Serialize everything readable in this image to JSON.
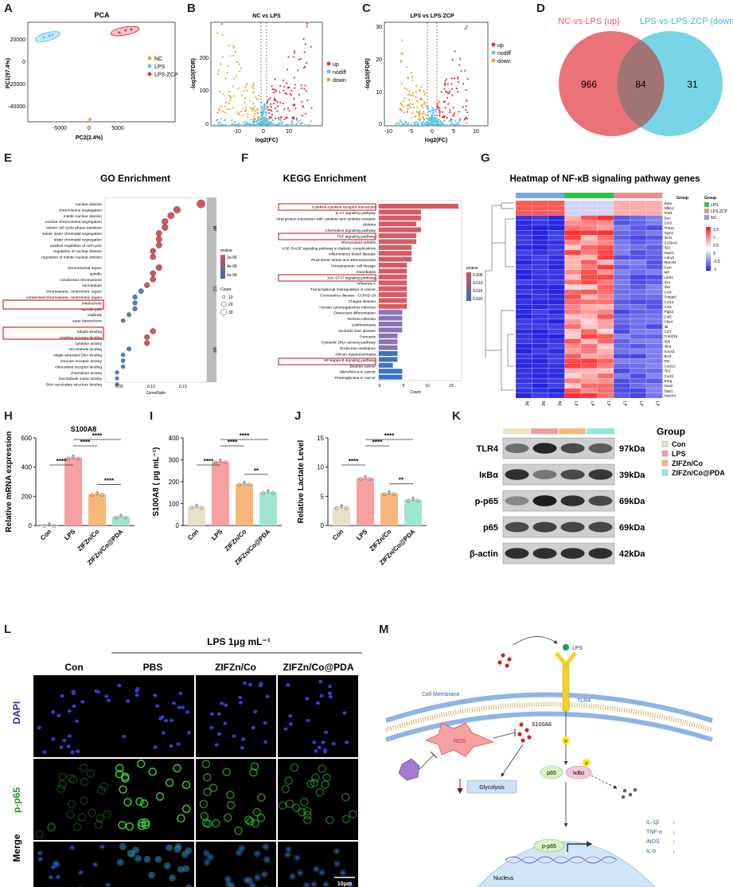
{
  "panels": {
    "A": {
      "label": "A",
      "title": "PCA",
      "xlabel": "PC2(2.4%)",
      "ylabel": "PC1(97.4%)",
      "yticks": [
        "20000",
        "0",
        "-20000",
        "-40000"
      ],
      "xticks": [
        "-5000",
        "0",
        "5000"
      ],
      "legend": [
        "NC",
        "LPS",
        "LPS-ZCP"
      ]
    },
    "B": {
      "label": "B",
      "title": "NC vs LPS",
      "xlabel": "log2(FC)",
      "ylabel": "-log10(FDR)",
      "yticks": [
        "200",
        "100",
        "0"
      ],
      "xticks": [
        "-10",
        "0",
        "10"
      ],
      "legend": [
        "up",
        "nodiff",
        "down"
      ]
    },
    "C": {
      "label": "C",
      "title": "LPS vs LPS-ZCP",
      "xlabel": "log2(FC)",
      "ylabel": "-log10(FDR)",
      "yticks": [
        "30",
        "20",
        "10",
        "0"
      ],
      "xticks": [
        "-10",
        "-5",
        "0",
        "5",
        "10"
      ],
      "legend": [
        "up",
        "nodiff",
        "down"
      ]
    },
    "D": {
      "label": "D",
      "left_label": "NC-vs-LPS (up)",
      "right_label": "LPS-vs-LPS-ZCP (down)",
      "left_only": "966",
      "overlap": "84",
      "right_only": "31"
    },
    "E": {
      "label": "E",
      "title": "GO Enrichment",
      "xlabel": "GeneRatio",
      "xticks": [
        "0.05",
        "0.10",
        "0.15"
      ],
      "groups": [
        "BP",
        "CC",
        "MF"
      ],
      "terms": [
        "nuclear division",
        "chromosome segregation",
        "mitotic nuclear division",
        "nuclear chromosome segregation",
        "mitotic cell cycle phase transition",
        "mitotic sister chromatid segregation",
        "sister chromatid segregation",
        "positive regulation of cell cycle",
        "regulation of nuclear division",
        "regulation of mitotic nuclear division",
        "chromosomal region",
        "spindle",
        "condensed chromosome",
        "microtubule",
        "chromosome, centromeric region",
        "condensed chromosome, centromeric region",
        "kinetochore",
        "spindle pole",
        "midbody",
        "outer kinetochore",
        "tubulin binding",
        "cytokine receptor binding",
        "cytokine activity",
        "microtubule binding",
        "single-stranded DNA binding",
        "immune receptor activity",
        "chemokine receptor binding",
        "chemokine activity",
        "microtubule motor activity",
        "DNA secondary structure binding"
      ],
      "legend_title_p": "pvalue",
      "legend_p": [
        "2e-06",
        "4e-06",
        "6e-06"
      ],
      "legend_title_c": "Count",
      "legend_c": [
        "10",
        "20",
        "30"
      ]
    },
    "F": {
      "label": "F",
      "title": "KEGG Enrichment",
      "xlabel": "Count",
      "xticks": [
        "0",
        "5",
        "10",
        "15"
      ],
      "terms": [
        "Cytokine-cytokine receptor interaction",
        "IL-17 signaling pathway",
        "Viral protein interaction with cytokine and cytokine receptor",
        "Malaria",
        "Chemokine signaling pathway",
        "TNF signaling pathway",
        "Rheumatoid arthritis",
        "AGE-RAGE signaling pathway in diabetic complications",
        "Inflammatory bowel disease",
        "Fluid shear stress and atherosclerosis",
        "Hematopoietic cell lineage",
        "Amoebiasis",
        "JAK-STAT signaling pathway",
        "Influenza A",
        "Transcriptional misregulation in cancer",
        "Coronavirus disease - COVID-19",
        "Chagas disease",
        "Human cytomegalovirus infection",
        "Osteoclast differentiation",
        "Yersinia infection",
        "Leishmaniasis",
        "Alcoholic liver disease",
        "Pertussis",
        "Cytosolic DNA-sensing pathway",
        "Endocrine resistance",
        "African trypanosomiasis",
        "NF-kappa B signaling pathway",
        "Bladder cancer",
        "MicroRNAs in cancer",
        "Proteoglycans in cancer"
      ],
      "counts": [
        17,
        9,
        9,
        8,
        9,
        8,
        8,
        7,
        7,
        7,
        6,
        6,
        6,
        6,
        6,
        6,
        6,
        6,
        5,
        5,
        5,
        5,
        4,
        4,
        4,
        4,
        4,
        3,
        5,
        5
      ],
      "legend_title": "pvalue",
      "legend": [
        "0.005",
        "0.010",
        "0.015",
        "0.020"
      ]
    },
    "G": {
      "label": "G",
      "title": "Heatmap  of  NF-κB signaling pathway genes",
      "genes": [
        "Rela",
        "Nfkb1",
        "Traf1",
        "Dcn",
        "Ccr2",
        "Thbs1",
        "Tgm1",
        "Il1rl1",
        "S100A8",
        "Il23",
        "Nupr1",
        "Adcy2",
        "Marcks",
        "Fam",
        "Mif",
        "Lilrb4",
        "Il1a",
        "Il1b",
        "Ccl4",
        "Tnfaip3",
        "Ccl12",
        "Ccl3",
        "Ptgs2",
        "Ccl5",
        "Ctla4",
        "Il6",
        "Ccl7",
        "Tnfrsf1b",
        "Il18",
        "Il6ra",
        "Socs3",
        "Bcl3",
        "Rel",
        "Cxcl10",
        "Tlr2",
        "Cxcl3",
        "Ereg",
        "Nos2",
        "Dqa1",
        "Notch4"
      ],
      "samples": [
        "NC-1",
        "NC-2",
        "NC-3",
        "LPS-2",
        "LPS-1",
        "LPS-3",
        "LPS-ZCP1",
        "LPS-ZCP2",
        "LPS-ZCP3"
      ],
      "legend_group_title": "Group",
      "legend_group": [
        "LPS",
        "LPS-ZCP",
        "NC"
      ],
      "scale": [
        "1.5",
        "1",
        "0.5",
        "0",
        "-0.5",
        "-1"
      ],
      "colors": {
        "LPS": "#2fbf4a",
        "LPS-ZCP": "#f18c8c",
        "NC": "#77a9e0"
      }
    },
    "H": {
      "label": "H",
      "title": "S100A8",
      "ylabel": "Relative mRNA expression",
      "yticks": [
        "0",
        "200",
        "400",
        "600"
      ],
      "categories": [
        "Con",
        "LPS",
        "ZIFZn/Co",
        "ZIFZn/Co@PDA"
      ],
      "values": [
        1,
        465,
        215,
        60
      ],
      "sig": [
        "****",
        "****",
        "****",
        "****"
      ]
    },
    "I": {
      "label": "I",
      "ylabel": "S100A8 ( pg mL⁻¹)",
      "yticks": [
        "0",
        "100",
        "200",
        "300",
        "400"
      ],
      "categories": [
        "Con",
        "LPS",
        "ZIFZn/Co",
        "ZIFZn/Co@PDA"
      ],
      "values": [
        85,
        292,
        190,
        152
      ],
      "sig": [
        "****",
        "****",
        "****",
        "**"
      ]
    },
    "J": {
      "label": "J",
      "ylabel": "Relative Lactate Level",
      "yticks": [
        "0",
        "5",
        "10",
        "15"
      ],
      "categories": [
        "Con",
        "LPS",
        "ZIFZn/Co",
        "ZIFZn/Co@PDA"
      ],
      "values": [
        3.1,
        8.1,
        5.5,
        4.4
      ],
      "sig": [
        "****",
        "****",
        "****",
        "**"
      ]
    },
    "K": {
      "label": "K",
      "bands": [
        "TLR4",
        "IκBα",
        "p-p65",
        "p65",
        "β-actin"
      ],
      "sizes": [
        "97kDa",
        "39kDa",
        "69kDa",
        "69kDa",
        "42kDa"
      ],
      "legend_title": "Group",
      "legend": [
        "Con",
        "LPS",
        "ZIFZn/Co",
        "ZIFZn/Co@PDA"
      ]
    },
    "L": {
      "label": "L",
      "header": "LPS 1μg mL⁻¹",
      "cols": [
        "Con",
        "PBS",
        "ZIFZn/Co",
        "ZIFZn/Co@PDA"
      ],
      "rows": [
        "DAPI",
        "p-p65",
        "Merge"
      ],
      "scalebar": "10μm"
    },
    "M": {
      "label": "M",
      "membrane": "Cell Membrane",
      "lps": "LPS",
      "tlr4": "TLR4",
      "s100a8": "S100A8",
      "ros": "ROS",
      "p": "P",
      "p65": "p65",
      "ikba": "IκBα",
      "glycolysis": "Glycolysis",
      "pp65": "p-p65",
      "nucleus": "Nucleus",
      "cytokines": [
        "IL-1β",
        "TNF-α",
        "iNOS",
        "IL-6"
      ]
    }
  },
  "colors": {
    "con": "#e9e0c8",
    "lps": "#f6a0a0",
    "zif": "#f7b77a",
    "pda": "#9ee6d2",
    "nc": "#e9a53c",
    "lpsdot": "#5ec6e8",
    "zcp": "#e2344a"
  }
}
